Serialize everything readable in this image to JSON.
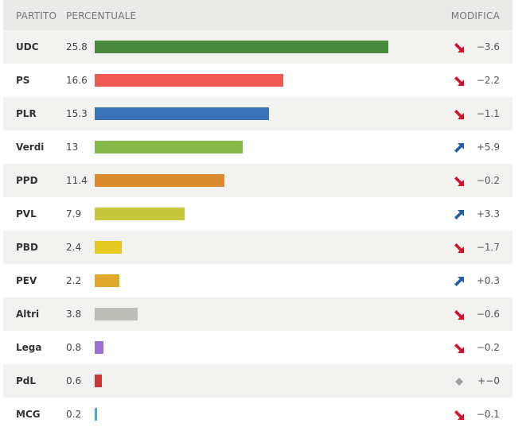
{
  "header": {
    "party": "PARTITO",
    "percent": "PERCENTUALE",
    "change": "MODIFICA"
  },
  "chart_data": {
    "type": "bar",
    "orientation": "horizontal",
    "xlim": [
      0,
      28
    ],
    "categories": [
      "UDC",
      "PS",
      "PLR",
      "Verdi",
      "PPD",
      "PVL",
      "PBD",
      "PEV",
      "Altri",
      "Lega",
      "PdL",
      "MCG"
    ],
    "values": [
      25.8,
      16.6,
      15.3,
      13,
      11.4,
      7.9,
      2.4,
      2.2,
      3.8,
      0.8,
      0.6,
      0.2
    ],
    "value_labels": [
      "25.8",
      "16.6",
      "15.3",
      "13",
      "11.4",
      "7.9",
      "2.4",
      "2.2",
      "3.8",
      "0.8",
      "0.6",
      "0.2"
    ],
    "changes": [
      "−3.6",
      "−2.2",
      "−1.1",
      "+5.9",
      "−0.2",
      "+3.3",
      "−1.7",
      "+0.3",
      "−0.6",
      "−0.2",
      "+−0",
      "−0.1"
    ],
    "trend": [
      "down",
      "down",
      "down",
      "up",
      "down",
      "up",
      "down",
      "up",
      "down",
      "down",
      "flat",
      "down"
    ],
    "colors": [
      "#4a8a3c",
      "#f05a55",
      "#3a72b8",
      "#86b84a",
      "#db8a2e",
      "#c6c73c",
      "#e6c823",
      "#e0a82c",
      "#bdbdb8",
      "#9b6fd6",
      "#c93838",
      "#4aa8e0"
    ],
    "trend_colors": {
      "down": "#d7102a",
      "up": "#1e5fa6",
      "flat": "#a0a0a0"
    }
  }
}
